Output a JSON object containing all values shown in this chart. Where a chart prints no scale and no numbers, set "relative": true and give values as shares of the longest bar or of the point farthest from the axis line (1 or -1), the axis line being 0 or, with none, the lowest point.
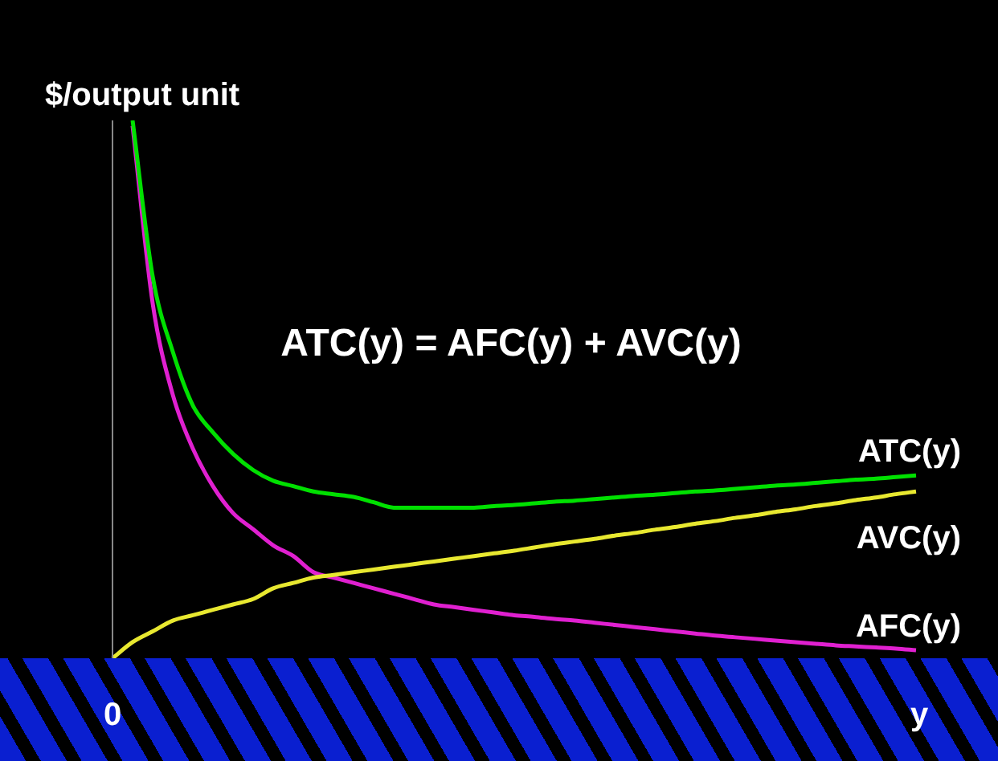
{
  "chart_data": {
    "type": "line",
    "relative": true,
    "ylabel": "$/output unit",
    "xlabel": "y",
    "annotations": [
      "ATC(y) = AFC(y) + AVC(y)",
      "0"
    ],
    "categories": [
      null,
      null,
      null,
      null,
      null,
      null,
      null,
      null,
      null,
      null,
      null,
      null,
      null,
      null,
      null,
      null,
      null,
      null,
      null,
      null,
      null,
      null,
      null,
      null,
      null,
      null,
      null,
      null,
      null,
      null,
      null,
      null,
      null,
      null,
      null,
      null,
      null,
      null,
      null,
      null,
      null
    ],
    "series": [
      {
        "name": "ATC(y)",
        "color": "#00e000",
        "values": [
          null,
          1.0,
          0.71,
          0.57,
          0.47,
          0.42,
          0.38,
          0.35,
          0.33,
          0.32,
          0.31,
          0.305,
          0.3,
          0.29,
          0.28,
          0.28,
          0.28,
          0.28,
          0.28,
          0.283,
          0.285,
          0.288,
          0.291,
          0.293,
          0.296,
          0.299,
          0.302,
          0.304,
          0.307,
          0.31,
          0.312,
          0.315,
          0.318,
          0.321,
          0.323,
          0.326,
          0.329,
          0.332,
          0.334,
          0.337,
          0.34
        ]
      },
      {
        "name": "AVC(y)",
        "color": "#e8e830",
        "values": [
          0,
          0.03,
          0.05,
          0.07,
          0.08,
          0.09,
          0.1,
          0.11,
          0.13,
          0.14,
          0.15,
          0.155,
          0.16,
          0.165,
          0.17,
          0.175,
          0.18,
          0.185,
          0.19,
          0.195,
          0.2,
          0.206,
          0.212,
          0.217,
          0.222,
          0.228,
          0.233,
          0.239,
          0.244,
          0.25,
          0.255,
          0.261,
          0.266,
          0.272,
          0.277,
          0.283,
          0.288,
          0.294,
          0.299,
          0.305,
          0.31
        ]
      },
      {
        "name": "AFC(y)",
        "color": "#e020d0",
        "values": [
          null,
          0.99,
          0.66,
          0.49,
          0.39,
          0.32,
          0.27,
          0.24,
          0.21,
          0.19,
          0.16,
          0.15,
          0.14,
          0.13,
          0.12,
          0.11,
          0.1,
          0.095,
          0.09,
          0.085,
          0.08,
          0.077,
          0.073,
          0.07,
          0.066,
          0.062,
          0.058,
          0.054,
          0.05,
          0.046,
          0.042,
          0.039,
          0.036,
          0.033,
          0.03,
          0.027,
          0.024,
          0.022,
          0.02,
          0.018,
          0.015
        ]
      }
    ],
    "legend": false
  }
}
